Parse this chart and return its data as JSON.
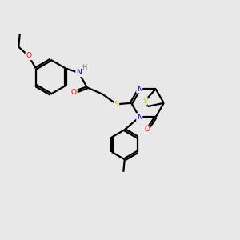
{
  "background_color": "#e8e8e8",
  "colors": {
    "C": "#000000",
    "N": "#0000cc",
    "O": "#ff0000",
    "S": "#cccc00",
    "H": "#708090"
  },
  "figsize": [
    3.0,
    3.0
  ],
  "dpi": 100
}
